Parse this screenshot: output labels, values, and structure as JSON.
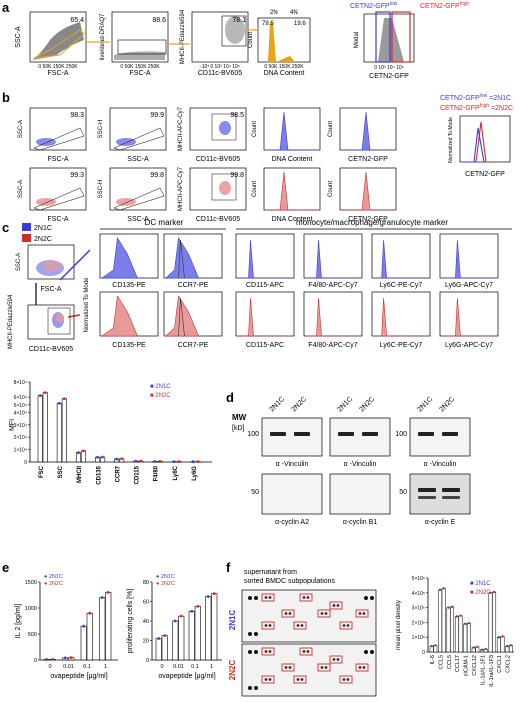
{
  "panels": {
    "a": {
      "letter": "a",
      "plots": [
        {
          "x_label": "FSC-A",
          "y_label": "SSC-A",
          "pct": "65.4",
          "x_ticks": [
            "0",
            "50K",
            "150K",
            "250K"
          ]
        },
        {
          "x_label": "FSC-A",
          "y_label": "live/dead-DRAQ7",
          "pct": "88.6",
          "x_ticks": [
            "0",
            "50K",
            "150K",
            "250K"
          ]
        },
        {
          "x_label": "CD11c-BV605",
          "y_label": "MHCII-PEdazzle594",
          "pct": "78.1",
          "x_ticks": [
            "-10³",
            "0",
            "10³",
            "10⁴",
            "10⁵"
          ]
        },
        {
          "x_label": "DNA Content",
          "y_label": "Count",
          "pct_left": "78.5",
          "pct_right": "19.6",
          "gate_left": "2N",
          "gate_right": "4N",
          "x_ticks": [
            "0",
            "50K",
            "150K",
            "250K"
          ]
        },
        {
          "x_label": "CETN2-GFP",
          "y_label": "Modal",
          "x_ticks": [
            "0",
            "10³",
            "10⁴",
            "10⁵"
          ]
        }
      ],
      "legend": {
        "low": "CETN2-GFP",
        "low_sup": "low",
        "high": "CETN2-GFP",
        "high_sup": "high"
      }
    },
    "b": {
      "letter": "b",
      "row1": [
        {
          "x_label": "FSC-A",
          "y_label": "SSC-A",
          "pct": "98.3"
        },
        {
          "x_label": "SSC-A",
          "y_label": "SSC-H",
          "pct": "99.9"
        },
        {
          "x_label": "CD11c-BV605",
          "y_label": "MHCII-APC-Cy7",
          "pct": "98.5"
        },
        {
          "x_label": "DNA Content",
          "y_label": "Count"
        },
        {
          "x_label": "CETN2-GFP",
          "y_label": "Count"
        }
      ],
      "row2": [
        {
          "x_label": "FSC-A",
          "y_label": "SSC-A",
          "pct": "99.3"
        },
        {
          "x_label": "SSC-A",
          "y_label": "SSC-H",
          "pct": "99.8"
        },
        {
          "x_label": "CD11c-BV605",
          "y_label": "MHCII-APC-Cy7",
          "pct": "99.8"
        },
        {
          "x_label": "DNA Content",
          "y_label": "Count"
        },
        {
          "x_label": "CETN2-GFP",
          "y_label": "Count"
        }
      ],
      "overlay": {
        "x_label": "CETN2-GFP",
        "y_label": "Normalized To Mode",
        "legend_low": "CETN2-GFP",
        "legend_low_sup": "low",
        "legend_low_eq": " =2N1C",
        "legend_high": "CETN2-GFP",
        "legend_high_sup": "high",
        "legend_high_eq": " =2N2C"
      }
    },
    "c": {
      "letter": "c",
      "legend": [
        "2N1C",
        "2N2C"
      ],
      "dot1": {
        "x_label": "FSC-A",
        "y_label": "SSC-A"
      },
      "dot2": {
        "x_label": "CD11c-BV605",
        "y_label": "MHCII-PEdazzle594"
      },
      "dc_header": "DC marker",
      "mono_header": "monocyte/macrophage/granulocyte marker",
      "y_label": "Normalized To Mode",
      "markers": [
        "CD135-PE",
        "CCR7-PE",
        "CD115-APC",
        "F4/80-APC-Cy7",
        "Ly6C-PE-Cy7",
        "Ly6G-APC-Cy7"
      ],
      "mfi": {
        "y_label": "MFI",
        "legend": [
          "2N1C",
          "2N2C"
        ]
      }
    },
    "d": {
      "letter": "d",
      "mw_label": "MW",
      "mw_unit": "[kD]",
      "lanes": [
        "2N1C",
        "2N2C"
      ],
      "blots": [
        {
          "mw_top": "100",
          "mw_bottom": "50",
          "top_label": "α -Vinculin",
          "bottom_label": "α-cyclin A2"
        },
        {
          "mw_top": "",
          "mw_bottom": "",
          "top_label": "α -Vinculin",
          "bottom_label": "α-cyclin B1"
        },
        {
          "mw_top": "100",
          "mw_bottom": "50",
          "top_label": "α -Vinculin",
          "bottom_label": "α-cyclin E"
        }
      ]
    },
    "e": {
      "letter": "e",
      "legend": [
        "2N1C",
        "2N2C"
      ],
      "il2": {
        "y_label": "IL 2 [pg/ml]",
        "x_label": "ovapeptide [μg/ml]",
        "y_ticks": [
          "0",
          "500",
          "1000",
          "1500"
        ],
        "x_ticks": [
          "0",
          "0.01",
          "0.1",
          "1"
        ]
      },
      "prolif": {
        "y_label": "proliferating cells [%]",
        "x_label": "ovapeptide [μg/ml]",
        "y_ticks": [
          "0",
          "20",
          "40",
          "60",
          "80"
        ],
        "x_ticks": [
          "0",
          "0.01",
          "0.1",
          "1"
        ]
      }
    },
    "f": {
      "letter": "f",
      "title_line1": "supernatant from",
      "title_line2": "sorted BMDC subpopulations",
      "row_labels": [
        "2N1C",
        "2N2C"
      ],
      "legend": [
        "2N1C",
        "2N2C"
      ],
      "y_label": "mean pixel density",
      "y_ticks": [
        "0",
        "1×10⁶",
        "2×10⁶",
        "3×10⁶",
        "4×10⁶",
        "5×10⁶"
      ]
    }
  },
  "colors": {
    "blue": "#3d3dd6",
    "red": "#d62b2b",
    "blue_fill": "#7b7ee8",
    "red_fill": "#e89a9a",
    "gray_fill": "#9a9a9a",
    "orange": "#e8a317"
  },
  "chart_data": [
    {
      "type": "bar",
      "title": "",
      "ylabel": "MFI",
      "categories": [
        "FSC",
        "SSC",
        "MHCII",
        "CD135",
        "CCR7",
        "CD115",
        "F4/80",
        "Ly6C",
        "Ly6G"
      ],
      "series": [
        {
          "name": "2N1C",
          "values": [
            62000,
            52000,
            7500,
            3800,
            2400,
            700,
            400,
            300,
            250
          ]
        },
        {
          "name": "2N2C",
          "values": [
            66000,
            58000,
            9000,
            4000,
            2600,
            750,
            450,
            320,
            260
          ]
        }
      ],
      "y_ticks": [
        "0",
        "1×10⁴",
        "2×10⁴",
        "3×10⁴",
        "4×10⁴",
        "5×10⁴",
        "6×10⁴",
        "8×10⁴"
      ]
    },
    {
      "type": "bar",
      "ylabel": "IL 2 [pg/ml]",
      "xlabel": "ovapeptide [μg/ml]",
      "categories": [
        "0",
        "0.01",
        "0.1",
        "1"
      ],
      "series": [
        {
          "name": "2N1C",
          "values": [
            10,
            40,
            650,
            1200
          ]
        },
        {
          "name": "2N2C",
          "values": [
            12,
            45,
            900,
            1300
          ]
        }
      ],
      "ylim": [
        0,
        1500
      ]
    },
    {
      "type": "bar",
      "ylabel": "proliferating cells [%]",
      "xlabel": "ovapeptide [μg/ml]",
      "categories": [
        "0",
        "0.01",
        "0.1",
        "1"
      ],
      "series": [
        {
          "name": "2N1C",
          "values": [
            22,
            40,
            50,
            65
          ]
        },
        {
          "name": "2N2C",
          "values": [
            25,
            45,
            55,
            68
          ]
        }
      ],
      "ylim": [
        0,
        80
      ]
    },
    {
      "type": "bar",
      "ylabel": "mean pixel density",
      "categories": [
        "IL-6",
        "CCL5",
        "CCL5",
        "CCL17",
        "sICAM-1",
        "CXCL12",
        "IL-1α/IL-1F1",
        "IL-1ra/IL-1F3",
        "CXCL1",
        "CXCL2"
      ],
      "series": [
        {
          "name": "2N1C",
          "values": [
            400000,
            4200000,
            3000000,
            2400000,
            1900000,
            300000,
            150000,
            4000000,
            1000000,
            400000
          ]
        },
        {
          "name": "2N2C",
          "values": [
            450000,
            4300000,
            3050000,
            2450000,
            1950000,
            350000,
            200000,
            4050000,
            1050000,
            450000
          ]
        }
      ],
      "ylim": [
        0,
        5000000
      ]
    }
  ]
}
